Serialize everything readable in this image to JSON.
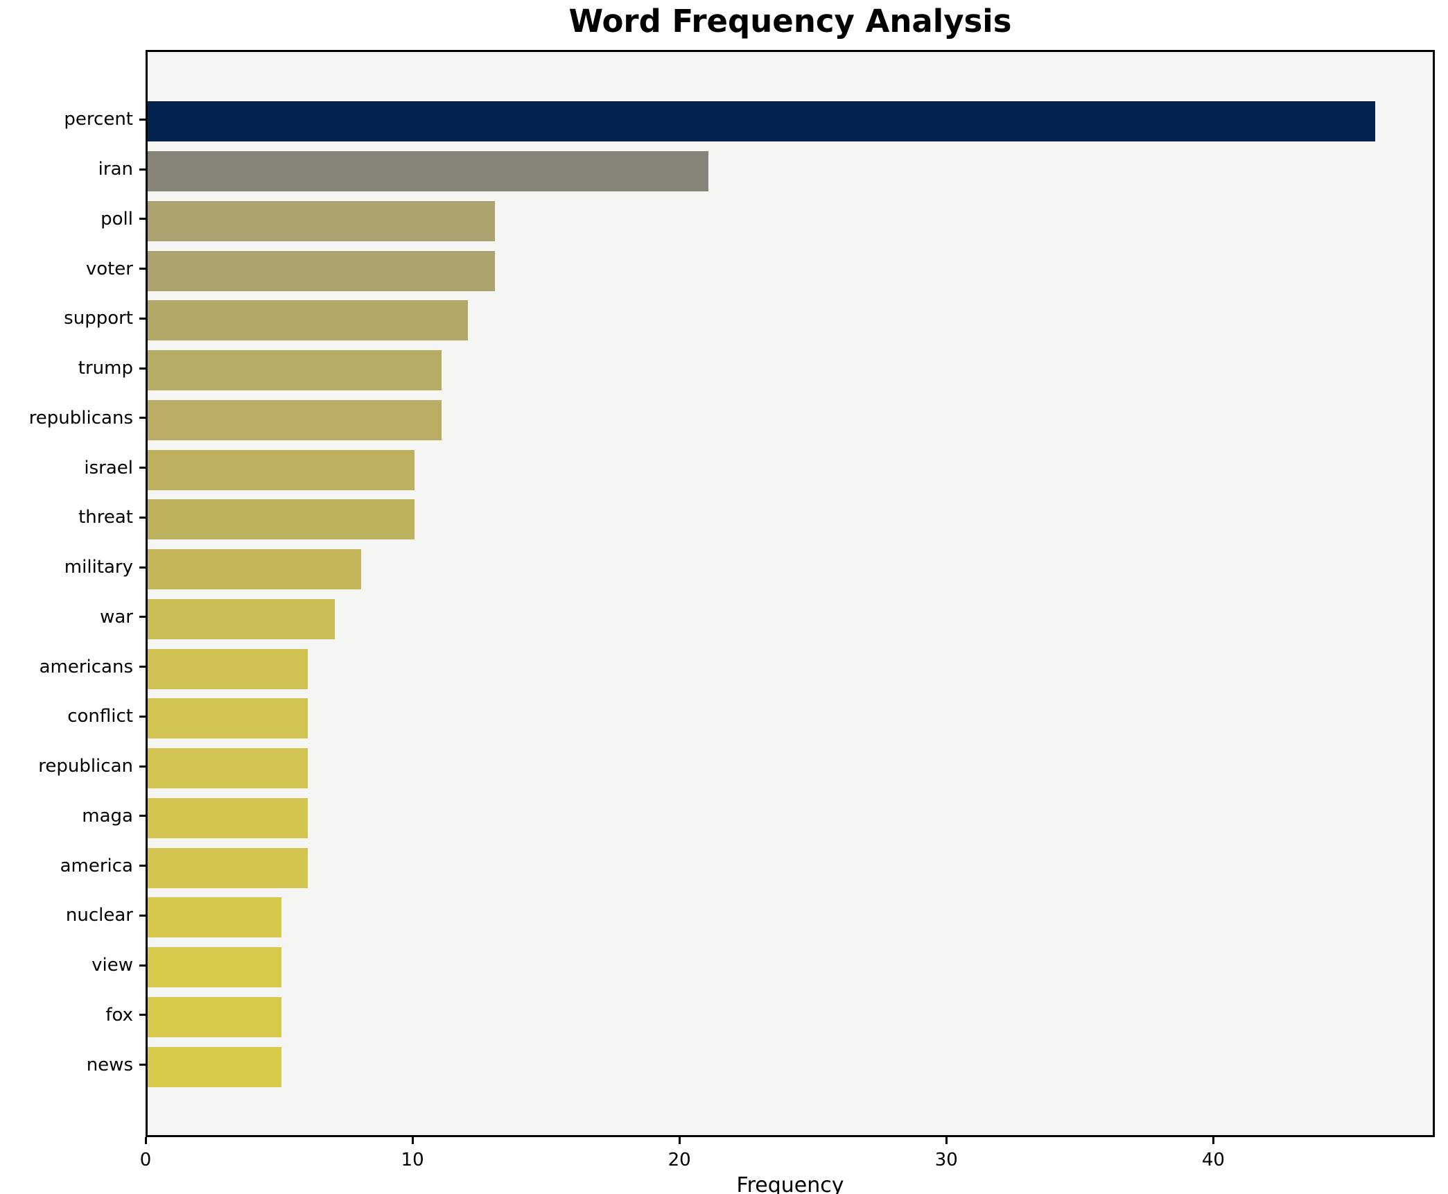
{
  "chart_data": {
    "type": "bar",
    "orientation": "horizontal",
    "title": "Word Frequency Analysis",
    "xlabel": "Frequency",
    "ylabel": "",
    "categories": [
      "percent",
      "iran",
      "poll",
      "voter",
      "support",
      "trump",
      "republicans",
      "israel",
      "threat",
      "military",
      "war",
      "americans",
      "conflict",
      "republican",
      "maga",
      "america",
      "nuclear",
      "view",
      "fox",
      "news"
    ],
    "values": [
      46,
      21,
      13,
      13,
      12,
      11,
      11,
      10,
      10,
      8,
      7,
      6,
      6,
      6,
      6,
      6,
      5,
      5,
      5,
      5
    ],
    "bar_colors": [
      "#03234e",
      "#868379",
      "#aba26f",
      "#aba26f",
      "#b2a968",
      "#b7ac64",
      "#b8ad63",
      "#bdb15f",
      "#bdb25e",
      "#c4b75a",
      "#cabd55",
      "#cfc152",
      "#d1c350",
      "#d2c450",
      "#d3c54f",
      "#d3c54f",
      "#d7c84d",
      "#d8c94c",
      "#d8c94c",
      "#d9ca4b"
    ],
    "xticks": [
      0,
      10,
      20,
      30,
      40
    ],
    "xlim": [
      0,
      48.3
    ],
    "grid": false,
    "legend": "none",
    "plot_background": "#f5f5f4",
    "figure_background": "#ffffff",
    "spine_color": "#000000",
    "text_color": "#000000"
  }
}
